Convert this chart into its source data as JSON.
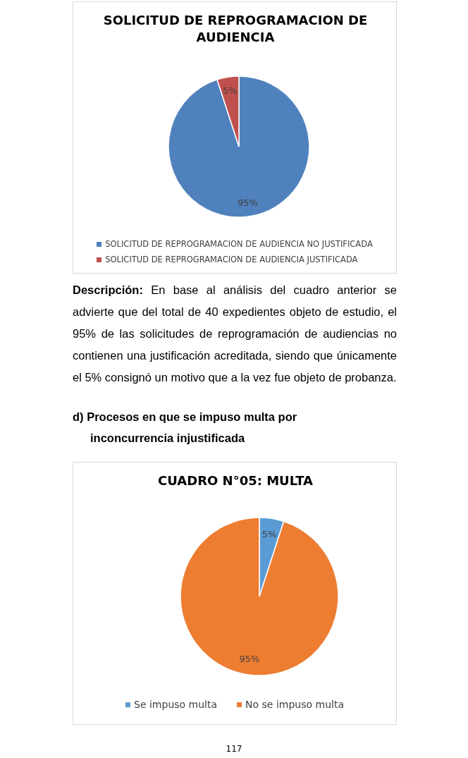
{
  "chart_data": [
    {
      "type": "pie",
      "title": "SOLICITUD DE REPROGRAMACION DE AUDIENCIA",
      "categories": [
        "SOLICITUD DE REPROGRAMACION DE AUDIENCIA NO JUSTIFICADA",
        "SOLICITUD DE REPROGRAMACION DE AUDIENCIA JUSTIFICADA"
      ],
      "values": [
        95,
        5
      ],
      "colors": [
        "#4f81bd",
        "#c0504d"
      ],
      "value_labels": [
        "95%",
        "5%"
      ],
      "legend": "bottom",
      "annotations": [
        "Descripción:",
        "En base al análisis del cuadro anterior se advierte que del total de 40 expedientes objeto de estudio, el 95% de las solicitudes de reprogramación de audiencias no contienen una justificación acreditada, siendo que únicamente el 5% consignó un motivo que a la vez fue objeto de probanza."
      ]
    },
    {
      "type": "pie",
      "title": "CUADRO N°05: MULTA",
      "categories": [
        "Se impuso multa",
        "No se impuso multa"
      ],
      "values": [
        5,
        95
      ],
      "colors": [
        "#5b9bd5",
        "#ed7d31"
      ],
      "value_labels": [
        "5%",
        "95%"
      ],
      "legend": "bottom",
      "annotations": [
        "d) Procesos en que se impuso multa por inconcurrencia injustificada",
        "117"
      ]
    }
  ]
}
